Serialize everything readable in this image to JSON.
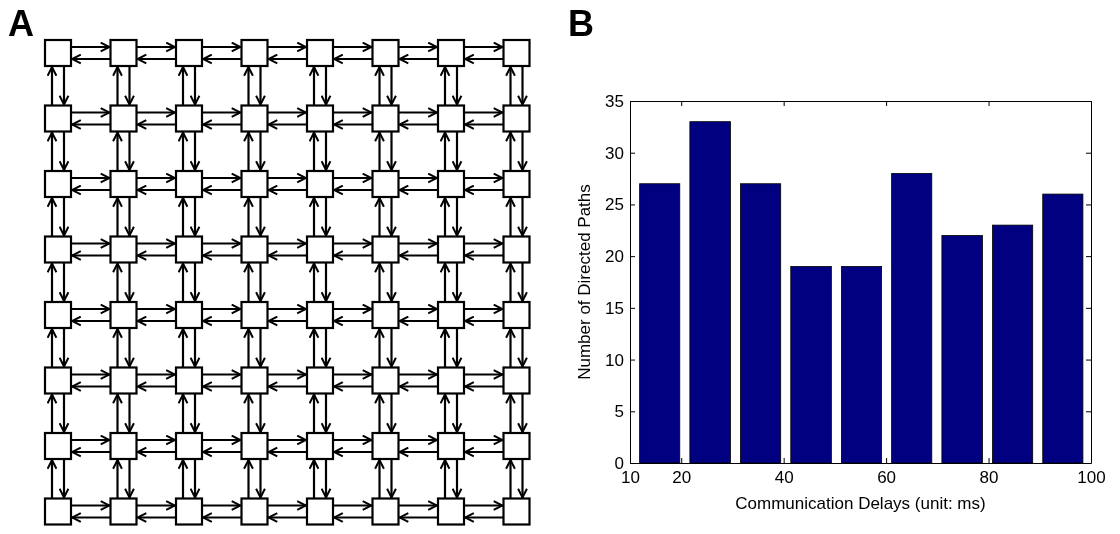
{
  "chart_data": [
    {
      "type": "other",
      "title": "A"
    },
    {
      "type": "histogram",
      "title": "B",
      "xlabel": "Communication Delays (unit: ms)",
      "ylabel": "Number of Directed Paths",
      "bins": [
        10.9,
        20.7,
        30.6,
        40.4,
        50.3,
        60.1,
        69.9,
        79.8,
        89.6,
        99.4
      ],
      "values": [
        27,
        33,
        27,
        19,
        19,
        28,
        22,
        23,
        26
      ],
      "color": "#000080",
      "xlim": [
        10,
        100
      ],
      "xticks": [
        10,
        20,
        40,
        60,
        80,
        100
      ],
      "ylim": [
        0,
        35
      ],
      "yticks": [
        0,
        5,
        10,
        15,
        20,
        25,
        30,
        35
      ]
    }
  ]
}
